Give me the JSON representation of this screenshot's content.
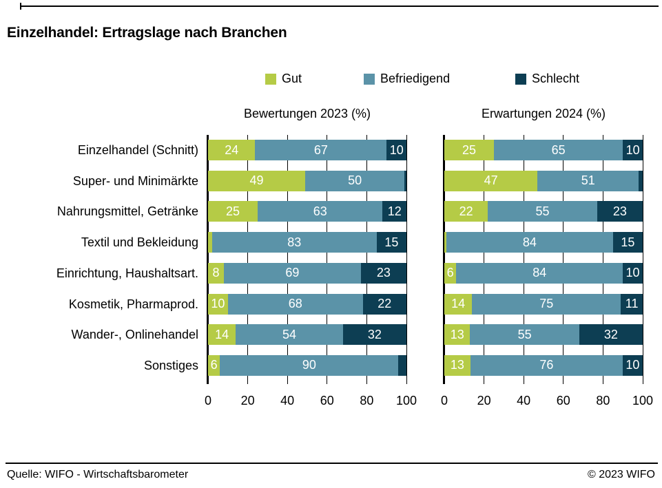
{
  "header": {
    "title": "Einzelhandel: Ertragslage nach Branchen"
  },
  "legend": [
    {
      "label": "Gut",
      "color": "#b5cb46"
    },
    {
      "label": "Befriedigend",
      "color": "#5b93a8"
    },
    {
      "label": "Schlecht",
      "color": "#0d3e53"
    }
  ],
  "chart_data": {
    "type": "bar",
    "orientation": "horizontal",
    "stacked": true,
    "unit": "%",
    "xlim": [
      0,
      100
    ],
    "xticks": [
      0,
      20,
      40,
      60,
      80,
      100
    ],
    "grid": true,
    "value_label_min": 6,
    "categories": [
      "Einzelhandel (Schnitt)",
      "Super- und Minimärkte",
      "Nahrungsmittel, Getränke",
      "Textil und Bekleidung",
      "Einrichtung, Haushaltsart.",
      "Kosmetik, Pharmaprod.",
      "Wander-, Onlinehandel",
      "Sonstiges"
    ],
    "panels": [
      {
        "title": "Bewertungen 2023 (%)",
        "series": [
          {
            "name": "Gut",
            "color": "#b5cb46",
            "values": [
              24,
              49,
              25,
              2,
              8,
              10,
              14,
              6
            ]
          },
          {
            "name": "Befriedigend",
            "color": "#5b93a8",
            "values": [
              67,
              50,
              63,
              83,
              69,
              68,
              54,
              90
            ]
          },
          {
            "name": "Schlecht",
            "color": "#0d3e53",
            "values": [
              10,
              1,
              12,
              15,
              23,
              22,
              32,
              4
            ]
          }
        ]
      },
      {
        "title": "Erwartungen 2024 (%)",
        "series": [
          {
            "name": "Gut",
            "color": "#b5cb46",
            "values": [
              25,
              47,
              22,
              1,
              6,
              14,
              13,
              13
            ]
          },
          {
            "name": "Befriedigend",
            "color": "#5b93a8",
            "values": [
              65,
              51,
              55,
              84,
              84,
              75,
              55,
              76
            ]
          },
          {
            "name": "Schlecht",
            "color": "#0d3e53",
            "values": [
              10,
              2,
              23,
              15,
              10,
              11,
              32,
              10
            ]
          }
        ]
      }
    ]
  },
  "footer": {
    "source": "Quelle: WIFO - Wirtschaftsbarometer",
    "copyright": "© 2023 WIFO"
  }
}
